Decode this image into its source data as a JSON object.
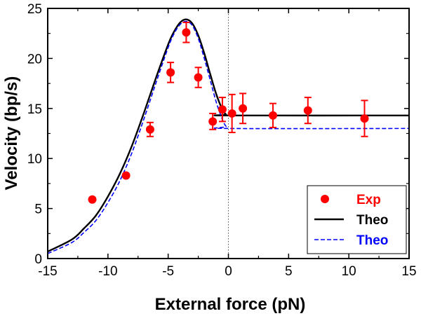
{
  "chart_data": {
    "type": "scatter",
    "title": "",
    "xlabel": "External force (pN)",
    "ylabel": "Velocity (bp/s)",
    "xlim": [
      -15,
      15
    ],
    "ylim": [
      0,
      25
    ],
    "xticks": [
      -15,
      -10,
      -5,
      0,
      5,
      10,
      15
    ],
    "yticks": [
      0,
      5,
      10,
      15,
      20,
      25
    ],
    "xtick_labels": [
      "-15",
      "-10",
      "-5",
      "0",
      "5",
      "10",
      "15"
    ],
    "ytick_labels": [
      "0",
      "5",
      "10",
      "15",
      "20",
      "25"
    ],
    "grid": false,
    "reference_line": {
      "x": 0,
      "style": "dotted",
      "color": "#555555"
    },
    "legend": {
      "position": "bottom-right",
      "entries": [
        {
          "label": "Exp",
          "marker": "circle",
          "color": "#ff0000"
        },
        {
          "label": "Theo",
          "line": "solid",
          "color": "#000000"
        },
        {
          "label": "Theo",
          "line": "dashed",
          "color": "#0000ff"
        }
      ]
    },
    "series": [
      {
        "name": "Exp",
        "kind": "points_with_errorbars",
        "color": "#ff0000",
        "x": [
          -11.3,
          -8.5,
          -6.5,
          -4.8,
          -3.5,
          -2.5,
          -1.3,
          -0.5,
          0.3,
          1.2,
          3.7,
          6.6,
          11.3
        ],
        "y": [
          5.9,
          8.3,
          12.9,
          18.6,
          22.6,
          18.1,
          13.7,
          14.9,
          14.5,
          15.0,
          14.3,
          14.8,
          14.0
        ],
        "err": [
          0.0,
          0.0,
          0.7,
          1.0,
          1.0,
          1.0,
          0.8,
          1.2,
          1.9,
          1.5,
          1.2,
          1.3,
          1.8
        ]
      },
      {
        "name": "Theo",
        "kind": "line",
        "line": "solid",
        "color": "#000000",
        "x": [
          -15,
          -13,
          -12,
          -11,
          -10,
          -9,
          -8,
          -7,
          -6,
          -5,
          -4.5,
          -4,
          -3.5,
          -3,
          -2.5,
          -2,
          -1.5,
          -1,
          -0.5,
          -0.2,
          0,
          15
        ],
        "y": [
          0.7,
          1.9,
          3.0,
          4.3,
          6.2,
          8.5,
          11.3,
          14.6,
          18.1,
          21.4,
          22.7,
          23.6,
          23.9,
          23.5,
          22.3,
          20.5,
          18.4,
          16.4,
          14.9,
          14.4,
          14.3,
          14.3
        ]
      },
      {
        "name": "Theo",
        "kind": "line",
        "line": "dashed",
        "color": "#0000ff",
        "x": [
          -15,
          -13,
          -12,
          -11,
          -10,
          -9,
          -8,
          -7,
          -6,
          -5,
          -4.5,
          -4,
          -3.5,
          -3,
          -2.5,
          -2,
          -1.5,
          -1,
          -0.5,
          -0.2,
          0,
          15
        ],
        "y": [
          0.5,
          1.6,
          2.6,
          3.8,
          5.6,
          7.8,
          10.6,
          14.0,
          17.6,
          21.1,
          22.5,
          23.4,
          23.7,
          23.3,
          22.0,
          20.0,
          17.8,
          15.6,
          13.9,
          13.2,
          13.0,
          13.0
        ]
      }
    ]
  }
}
